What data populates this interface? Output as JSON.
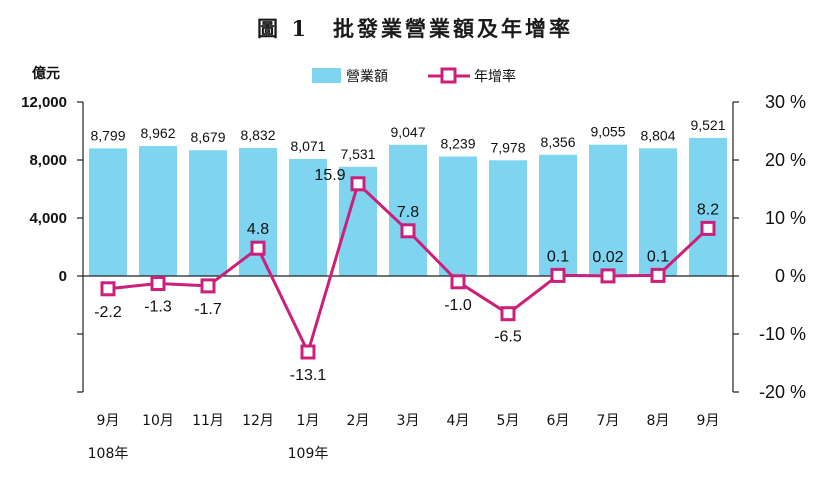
{
  "chart_data": {
    "type": "bar+line",
    "title": "圖 1　批發業營業額及年增率",
    "left_axis_unit": "億元",
    "categories": [
      "9月",
      "10月",
      "11月",
      "12月",
      "1月",
      "2月",
      "3月",
      "4月",
      "5月",
      "6月",
      "7月",
      "8月",
      "9月"
    ],
    "year_labels": [
      {
        "text": "108年",
        "category_index": 0
      },
      {
        "text": "109年",
        "category_index": 4
      }
    ],
    "series": [
      {
        "name": "營業額",
        "type": "bar",
        "axis": "left",
        "color": "#7fd4f0",
        "values": [
          8799,
          8962,
          8679,
          8832,
          8071,
          7531,
          9047,
          8239,
          7978,
          8356,
          9055,
          8804,
          9521
        ],
        "labels": [
          "8,799",
          "8,962",
          "8,679",
          "8,832",
          "8,071",
          "7,531",
          "9,047",
          "8,239",
          "7,978",
          "8,356",
          "9,055",
          "8,804",
          "9,521"
        ]
      },
      {
        "name": "年增率",
        "type": "line",
        "axis": "right",
        "color": "#cc1f7a",
        "values": [
          -2.2,
          -1.3,
          -1.7,
          4.8,
          -13.1,
          15.9,
          7.8,
          -1.0,
          -6.5,
          0.1,
          0.02,
          0.1,
          8.2
        ],
        "labels": [
          "-2.2",
          "-1.3",
          "-1.7",
          "4.8",
          "-13.1",
          "15.9",
          "7.8",
          "-1.0",
          "-6.5",
          "0.1",
          "0.02",
          "0.1",
          "8.2"
        ]
      }
    ],
    "left_ticks": [
      {
        "value": 12000,
        "label": "12,000"
      },
      {
        "value": 8000,
        "label": "8,000"
      },
      {
        "value": 4000,
        "label": "4,000"
      },
      {
        "value": 0,
        "label": "0"
      }
    ],
    "right_ticks": [
      {
        "value": 30,
        "label": "30 %"
      },
      {
        "value": 20,
        "label": "20 %"
      },
      {
        "value": 10,
        "label": "10 %"
      },
      {
        "value": 0,
        "label": "0 %"
      },
      {
        "value": -10,
        "label": "-10 %"
      },
      {
        "value": -20,
        "label": "-20 %"
      }
    ],
    "left_ylim": [
      -8000,
      12000
    ],
    "right_ylim": [
      -20,
      30
    ],
    "grid": false,
    "legend_position": "top-center"
  }
}
